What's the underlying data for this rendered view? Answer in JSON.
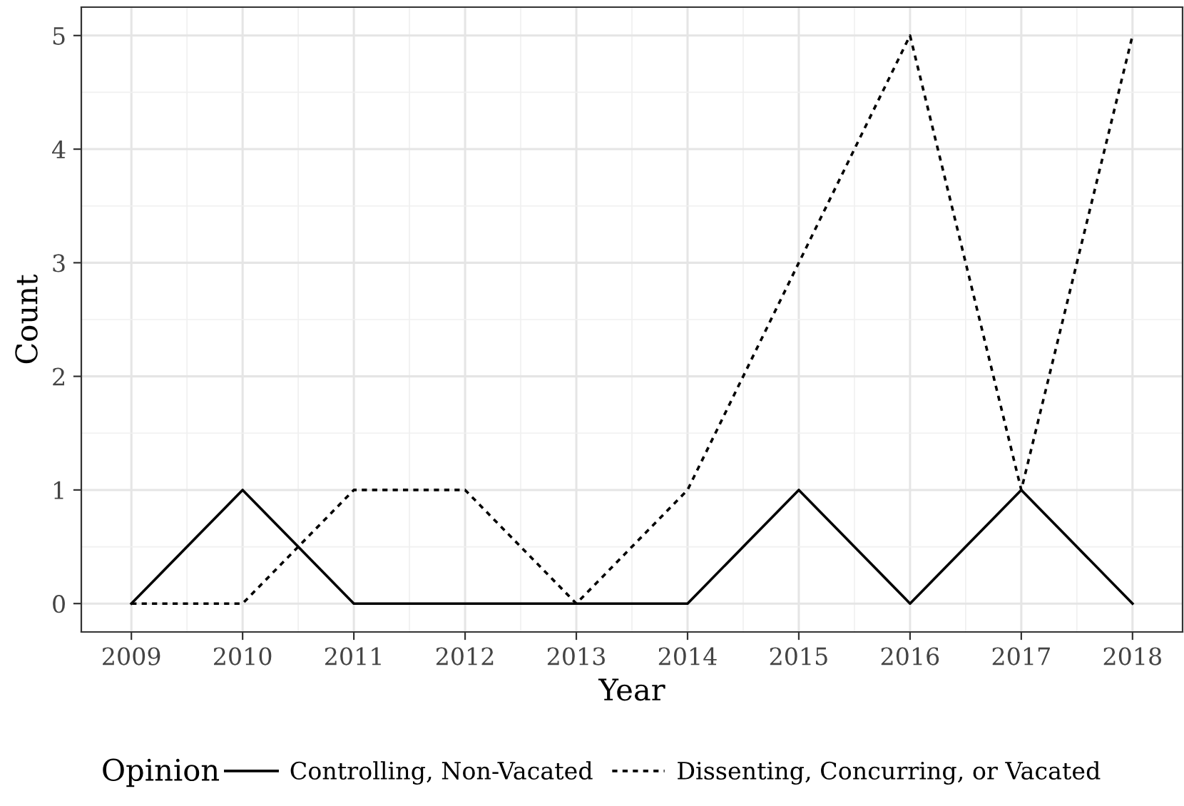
{
  "chart_data": {
    "type": "line",
    "xlabel": "Year",
    "ylabel": "Count",
    "legend_title": "Opinion",
    "x": [
      2009,
      2010,
      2011,
      2012,
      2013,
      2014,
      2015,
      2016,
      2017,
      2018
    ],
    "series": [
      {
        "name": "Controlling, Non-Vacated",
        "color": "#000000",
        "line_style": "solid",
        "values": [
          0,
          1,
          0,
          0,
          0,
          0,
          1,
          0,
          1,
          0
        ]
      },
      {
        "name": "Dissenting, Concurring, or Vacated",
        "color": "#000000",
        "line_style": "dotted",
        "values": [
          0,
          0,
          1,
          1,
          0,
          1,
          3,
          5,
          1,
          5
        ]
      }
    ],
    "xlim": [
      2008.55,
      2018.45
    ],
    "xticks": [
      2009,
      2010,
      2011,
      2012,
      2013,
      2014,
      2015,
      2016,
      2017,
      2018
    ],
    "ylim": [
      -0.25,
      5.25
    ],
    "yticks": [
      0,
      1,
      2,
      3,
      4,
      5
    ],
    "grid": true,
    "legend": "bottom",
    "marker": "none"
  }
}
